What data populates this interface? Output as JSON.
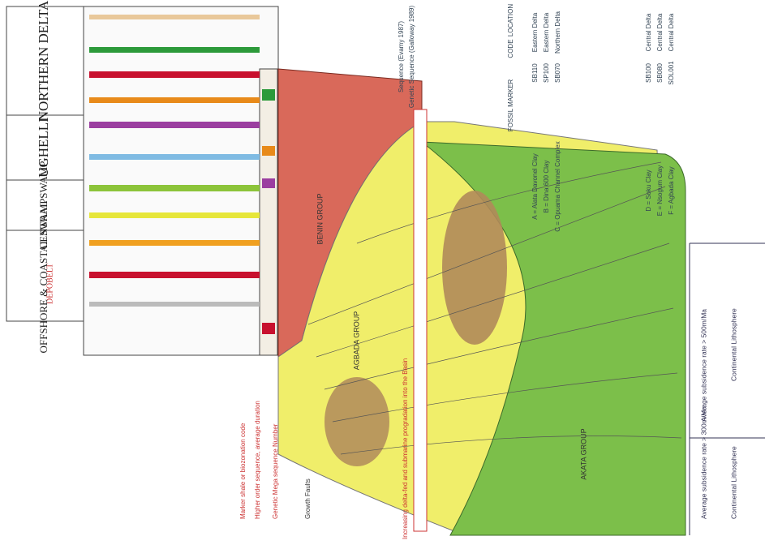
{
  "depobelts": {
    "title": "DEPOBELT",
    "items": [
      "OFFSHORE & COASTAL SWAMP",
      "CENTRAL SWAMP",
      "UGHELLI",
      "NORTHERN DELTA"
    ]
  },
  "groups": {
    "benin": "BENIN GROUP",
    "agbada": "AGBADA GROUP",
    "akata": "AKATA GROUP"
  },
  "legend": {
    "header": [
      "FOSSIL MARKER",
      "CODE",
      "LOCATION"
    ],
    "rows": [
      [
        "A = Alata Davonel Clay",
        "SB110",
        "Eastern Delta"
      ],
      [
        "B = Dina 600 Clay",
        "SP100",
        "Eastern Delta"
      ],
      [
        "C = Opuama Channel Complex",
        "SB070",
        "Northern Delta"
      ],
      [
        "D = Soku Clay",
        "SB100",
        "Central Delta"
      ],
      [
        "E = Nsogum Clay",
        "SB080",
        "Central Delta"
      ],
      [
        "F = Agbada Clay",
        "SOL001",
        "Central Delta"
      ]
    ],
    "keys": [
      "Sequence (Evamy 1987)",
      "Genetic Sequence (Galloway 1989)"
    ]
  },
  "notes": {
    "marker": "Marker shale or biozonation code",
    "sequence": "Higher order sequence, average duration",
    "genetic": "Genetic Mega sequence Number",
    "growth": "Growth Faults",
    "increase": "Increasing delta-fed and submarine progradation into the Basin"
  },
  "bottom": {
    "rate_left": "Average subsidence rate > 300m/Ma",
    "rate_right": "Average subsidence rate > 500m/Ma",
    "litho_left": "Continental Lithosphere",
    "litho_right": "Continental Lithosphere"
  }
}
